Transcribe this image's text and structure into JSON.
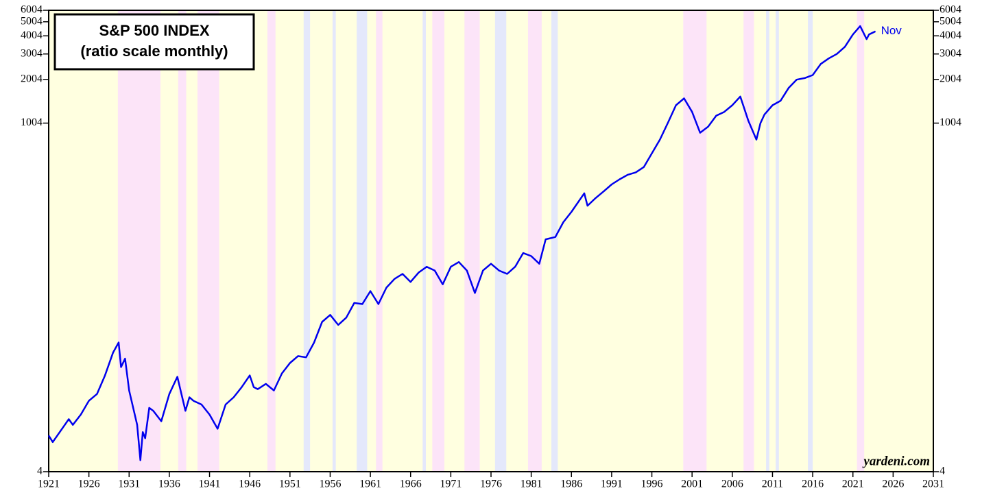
{
  "chart_data": {
    "type": "line",
    "title": "S&P 500 INDEX",
    "subtitle": "(ratio scale monthly)",
    "source": "yardeni.com",
    "annotation": "Nov",
    "log_scale": true,
    "xlim": [
      1921,
      2031
    ],
    "xticks": [
      1921,
      1926,
      1931,
      1936,
      1941,
      1946,
      1951,
      1956,
      1961,
      1966,
      1971,
      1976,
      1981,
      1986,
      1991,
      1996,
      2001,
      2006,
      2011,
      2016,
      2021,
      2026,
      2031
    ],
    "ylim": [
      4,
      6004
    ],
    "yticks": [
      4,
      1004,
      2004,
      3004,
      4004,
      5004,
      6004
    ],
    "background": "#ffffe0",
    "bands": [
      {
        "color": "#fce4f8",
        "ranges": [
          [
            1929.6,
            1934.9
          ],
          [
            1937.1,
            1938.1
          ],
          [
            1939.5,
            1942.2
          ],
          [
            1948.2,
            1949.2
          ],
          [
            1961.7,
            1962.5
          ],
          [
            1968.7,
            1970.2
          ],
          [
            1972.7,
            1974.6
          ],
          [
            1980.6,
            1982.3
          ],
          [
            1999.9,
            2002.8
          ],
          [
            2007.4,
            2008.7
          ],
          [
            2021.5,
            2022.4
          ]
        ]
      },
      {
        "color": "#e4e8fb",
        "ranges": [
          [
            1952.7,
            1953.5
          ],
          [
            1956.3,
            1956.7
          ],
          [
            1959.3,
            1960.6
          ],
          [
            1967.5,
            1967.9
          ],
          [
            1976.5,
            1977.9
          ],
          [
            1983.5,
            1984.3
          ],
          [
            2010.2,
            2010.6
          ],
          [
            2011.4,
            2011.8
          ],
          [
            2015.4,
            2016
          ]
        ]
      }
    ],
    "series": [
      {
        "name": "S&P 500",
        "color": "#0000ee",
        "x": [
          1921,
          1921.5,
          1923,
          1923.5,
          1924,
          1925,
          1926,
          1927,
          1928,
          1929,
          1929.7,
          1930,
          1930.5,
          1931,
          1932,
          1932.4,
          1932.7,
          1933,
          1933.5,
          1934,
          1935,
          1936,
          1937,
          1938,
          1938.5,
          1939,
          1940,
          1941,
          1942,
          1943,
          1944,
          1945,
          1946,
          1946.5,
          1947,
          1948,
          1949,
          1950,
          1951,
          1952,
          1953,
          1954,
          1955,
          1956,
          1957,
          1958,
          1959,
          1960,
          1961,
          1962,
          1963,
          1964,
          1965,
          1966,
          1967,
          1968,
          1969,
          1970,
          1971,
          1972,
          1973,
          1974,
          1975,
          1976,
          1977,
          1978,
          1979,
          1980,
          1981,
          1982,
          1982.8,
          1984,
          1985,
          1986,
          1987.6,
          1988,
          1989,
          1990,
          1991,
          1992,
          1993,
          1994,
          1995,
          1996,
          1997,
          1998,
          1999,
          2000,
          2001,
          2002,
          2003,
          2004,
          2005,
          2006,
          2007,
          2008,
          2009,
          2009.5,
          2010,
          2011,
          2012,
          2013,
          2014,
          2015,
          2016,
          2017,
          2018,
          2019,
          2020,
          2021,
          2021.9,
          2022.7,
          2023,
          2023.8
        ],
        "values": [
          7.1,
          6.4,
          8.4,
          9.2,
          8.4,
          9.9,
          12.3,
          13.7,
          18.4,
          26.4,
          31,
          21,
          24,
          14.5,
          8.4,
          4.8,
          7.5,
          6.8,
          11,
          10.5,
          8.9,
          13.7,
          18,
          10.5,
          13,
          12.3,
          11.6,
          9.9,
          7.9,
          11.6,
          13,
          15.3,
          18.4,
          15.3,
          14.8,
          16.1,
          14.5,
          19,
          22.4,
          25,
          24.5,
          31,
          43,
          48,
          41,
          46,
          58,
          57,
          70,
          57,
          74,
          85,
          92,
          81,
          94,
          103,
          97,
          78,
          103,
          111,
          97,
          68,
          97,
          108,
          97,
          92,
          103,
          128,
          122,
          108,
          159,
          165,
          209,
          246,
          330,
          271,
          306,
          340,
          380,
          412,
          443,
          460,
          500,
          621,
          773,
          1010,
          1333,
          1486,
          1200,
          862,
          950,
          1130,
          1200,
          1333,
          1530,
          1040,
          773,
          1004,
          1150,
          1333,
          1430,
          1750,
          2000,
          2050,
          2150,
          2565,
          2800,
          3004,
          3365,
          4090,
          4670,
          3800,
          4090,
          4300
        ]
      }
    ]
  }
}
